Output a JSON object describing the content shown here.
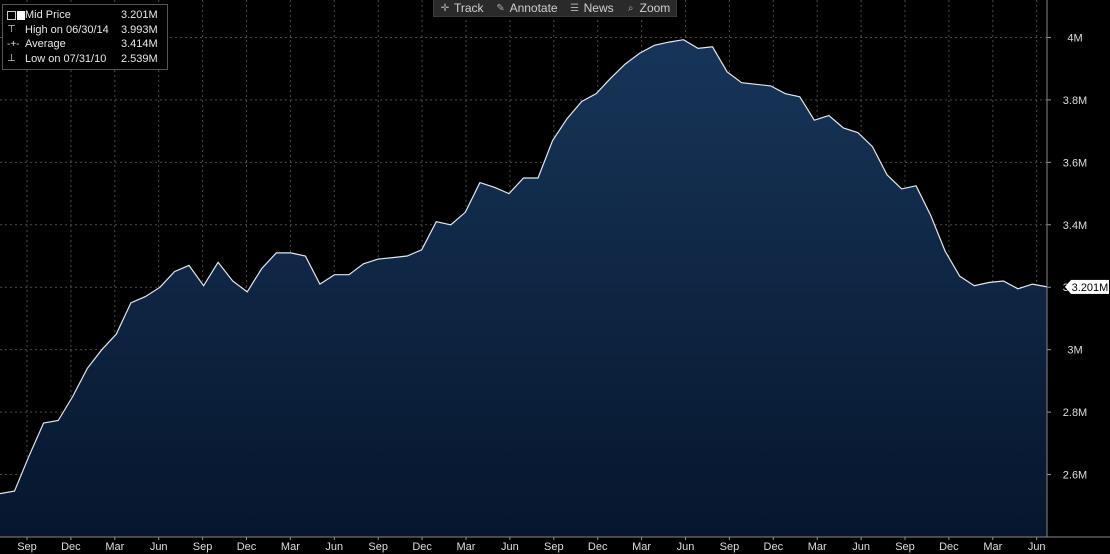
{
  "toolbar": {
    "items": [
      {
        "label": "Track",
        "icon": "crosshair-icon",
        "glyph": "✛"
      },
      {
        "label": "Annotate",
        "icon": "pencil-icon",
        "glyph": "✎"
      },
      {
        "label": "News",
        "icon": "news-icon",
        "glyph": "☰"
      },
      {
        "label": "Zoom",
        "icon": "magnifier-icon",
        "glyph": "⌕"
      }
    ]
  },
  "legend": {
    "rows": [
      {
        "label": "Mid Price",
        "value": "3.201M",
        "marker": "swatch"
      },
      {
        "label": "High on 06/30/14",
        "value": "3.993M",
        "marker": "high"
      },
      {
        "label": "Average",
        "value": "3.414M",
        "marker": "avg"
      },
      {
        "label": "Low on 07/31/10",
        "value": "2.539M",
        "marker": "low"
      }
    ]
  },
  "colors": {
    "background": "#000000",
    "area_top": "#173559",
    "area_bottom": "#06162d",
    "line": "#e6e6e6",
    "grid": "#555555",
    "text": "#dddddd"
  },
  "chart_data": {
    "type": "area",
    "series": [
      {
        "name": "Mid Price",
        "values": [
          2.539,
          2.547,
          2.66,
          2.765,
          2.773,
          2.85,
          2.94,
          3.0,
          3.05,
          3.15,
          3.17,
          3.2,
          3.25,
          3.27,
          3.205,
          3.28,
          3.22,
          3.185,
          3.26,
          3.31,
          3.31,
          3.3,
          3.21,
          3.24,
          3.24,
          3.275,
          3.29,
          3.295,
          3.3,
          3.32,
          3.41,
          3.4,
          3.44,
          3.535,
          3.52,
          3.5,
          3.55,
          3.55,
          3.67,
          3.74,
          3.795,
          3.82,
          3.87,
          3.915,
          3.95,
          3.975,
          3.985,
          3.993,
          3.965,
          3.97,
          3.89,
          3.855,
          3.85,
          3.845,
          3.82,
          3.81,
          3.735,
          3.75,
          3.71,
          3.695,
          3.65,
          3.56,
          3.515,
          3.525,
          3.43,
          3.315,
          3.235,
          3.205,
          3.215,
          3.22,
          3.195,
          3.21,
          3.201
        ]
      }
    ],
    "x_tick_labels": [
      "Sep",
      "Dec",
      "Mar",
      "Jun",
      "Sep",
      "Dec",
      "Mar",
      "Jun",
      "Sep",
      "Dec",
      "Mar",
      "Jun",
      "Sep",
      "Dec",
      "Mar",
      "Jun",
      "Sep",
      "Dec",
      "Mar",
      "Jun",
      "Sep",
      "Dec",
      "Mar",
      "Jun"
    ],
    "y_ticks": [
      2.6,
      2.8,
      3.0,
      3.2,
      3.4,
      3.6,
      3.8,
      4.0
    ],
    "y_tick_labels": [
      "2.6M",
      "2.8M",
      "3M",
      "3.2M",
      "3.4M",
      "3.6M",
      "3.8M",
      "4M"
    ],
    "ylim": [
      2.4,
      4.12
    ],
    "last_value_label": "3.201M",
    "last_value": 3.201,
    "grid": true,
    "legend_position": "top-left"
  }
}
